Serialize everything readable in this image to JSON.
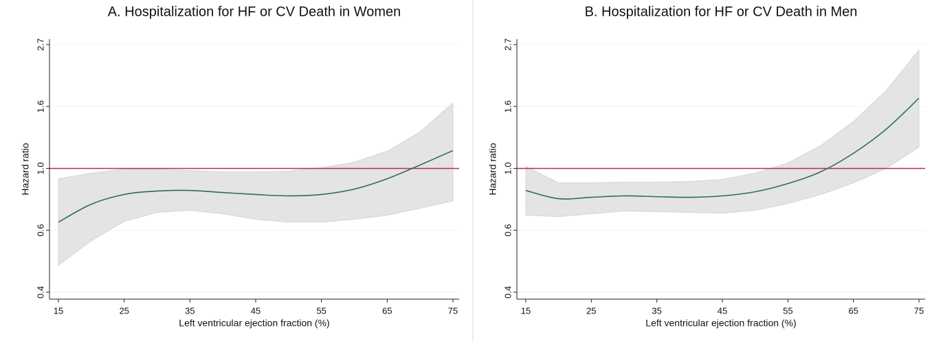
{
  "chart_data": [
    {
      "type": "line",
      "title": "A. Hospitalization for HF or CV Death in Women",
      "x_label": "Left ventricular ejection fraction (%)",
      "y_label": "Hazard ratio",
      "x": [
        15,
        20,
        25,
        30,
        35,
        40,
        45,
        50,
        55,
        60,
        65,
        70,
        75
      ],
      "values": [
        0.648,
        0.749,
        0.81,
        0.833,
        0.837,
        0.823,
        0.81,
        0.801,
        0.81,
        0.846,
        0.92,
        1.028,
        1.155
      ],
      "ci_upper": [
        0.92,
        0.962,
        0.994,
        0.994,
        0.983,
        0.972,
        0.972,
        0.978,
        1.006,
        1.051,
        1.149,
        1.342,
        1.695
      ],
      "ci_lower": [
        0.457,
        0.558,
        0.652,
        0.701,
        0.713,
        0.693,
        0.663,
        0.648,
        0.648,
        0.663,
        0.685,
        0.725,
        0.77
      ],
      "color": "#2b6b60",
      "band_color": "#e4e4e4",
      "reference_line": {
        "value": 1,
        "color": "#c0294b"
      },
      "log_scale_y": true,
      "grid": true,
      "xlim": [
        13.64,
        75.94
      ],
      "xticks": [
        15,
        25,
        35,
        45,
        55,
        65,
        75
      ],
      "ylim": [
        0.348,
        2.84
      ],
      "yticks": [
        {
          "value": 0.368,
          "label": "0.4"
        },
        {
          "value": 0.607,
          "label": "0.6"
        },
        {
          "value": 1,
          "label": "1.0"
        },
        {
          "value": 1.649,
          "label": "1.6"
        },
        {
          "value": 2.718,
          "label": "2.7"
        }
      ]
    },
    {
      "type": "line",
      "title": "B. Hospitalization for HF or CV Death in Men",
      "x_label": "Left ventricular ejection fraction (%)",
      "y_label": "Hazard ratio",
      "x": [
        15,
        20,
        25,
        30,
        35,
        40,
        45,
        50,
        55,
        60,
        65,
        70,
        75
      ],
      "values": [
        0.837,
        0.783,
        0.792,
        0.801,
        0.796,
        0.792,
        0.801,
        0.828,
        0.885,
        0.973,
        1.13,
        1.373,
        1.763
      ],
      "ci_upper": [
        1.017,
        0.89,
        0.89,
        0.895,
        0.895,
        0.9,
        0.915,
        0.962,
        1.045,
        1.201,
        1.459,
        1.874,
        2.6
      ],
      "ci_lower": [
        0.685,
        0.678,
        0.693,
        0.709,
        0.705,
        0.701,
        0.697,
        0.713,
        0.753,
        0.81,
        0.89,
        1.0,
        1.188
      ],
      "color": "#2b6b60",
      "band_color": "#e4e4e4",
      "reference_line": {
        "value": 1,
        "color": "#c0294b"
      },
      "log_scale_y": true,
      "grid": true,
      "xlim": [
        13.64,
        75.94
      ],
      "xticks": [
        15,
        25,
        35,
        45,
        55,
        65,
        75
      ],
      "ylim": [
        0.348,
        2.84
      ],
      "yticks": [
        {
          "value": 0.368,
          "label": "0.4"
        },
        {
          "value": 0.607,
          "label": "0.6"
        },
        {
          "value": 1,
          "label": "1.0"
        },
        {
          "value": 1.649,
          "label": "1.6"
        },
        {
          "value": 2.718,
          "label": "2.7"
        }
      ]
    }
  ]
}
